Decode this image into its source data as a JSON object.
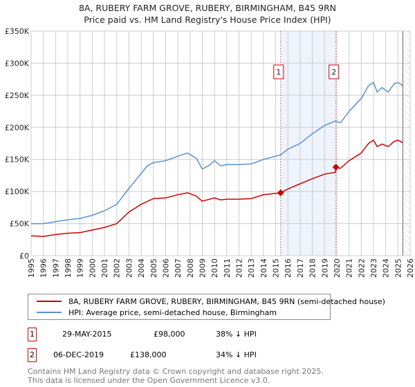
{
  "title": "8A, RUBERY FARM GROVE, RUBERY, BIRMINGHAM, B45 9RN",
  "subtitle": "Price paid vs. HM Land Registry's House Price Index (HPI)",
  "chart_data": {
    "type": "line",
    "xlim": [
      1995,
      2026
    ],
    "ylim": [
      0,
      350000
    ],
    "yticks": [
      0,
      50000,
      100000,
      150000,
      200000,
      250000,
      300000,
      350000
    ],
    "ytick_labels": [
      "£0",
      "£50K",
      "£100K",
      "£150K",
      "£200K",
      "£250K",
      "£300K",
      "£350K"
    ],
    "xticks": [
      "1995",
      "1996",
      "1997",
      "1998",
      "1999",
      "2000",
      "2001",
      "2002",
      "2003",
      "2004",
      "2005",
      "2006",
      "2007",
      "2008",
      "2009",
      "2010",
      "2011",
      "2012",
      "2013",
      "2014",
      "2015",
      "2016",
      "2017",
      "2018",
      "2019",
      "2020",
      "2021",
      "2022",
      "2023",
      "2024",
      "2025",
      "2026"
    ],
    "grid": true,
    "shaded_range": [
      2015.41,
      2019.93
    ],
    "hatched_from": 2025.4,
    "series": [
      {
        "name": "8A, RUBERY FARM GROVE, RUBERY, BIRMINGHAM, B45 9RN (semi-detached house)",
        "color": "#cc0000",
        "x": [
          1995,
          1996,
          1997,
          1998,
          1999,
          2000,
          2001,
          2002,
          2003,
          2004,
          2005,
          2006,
          2007,
          2007.8,
          2008.5,
          2009,
          2010,
          2010.5,
          2011,
          2012,
          2013,
          2014,
          2015.41,
          2016,
          2017,
          2018,
          2019,
          2019.9,
          2019.93,
          2020.3,
          2021,
          2022,
          2022.6,
          2023,
          2023.3,
          2023.7,
          2024.2,
          2024.7,
          2025,
          2025.4
        ],
        "y": [
          31000,
          30000,
          33000,
          35000,
          36000,
          40000,
          44000,
          50000,
          68000,
          80000,
          89000,
          90000,
          95000,
          98000,
          93000,
          85000,
          90000,
          87000,
          88000,
          88000,
          89000,
          95000,
          98000,
          104000,
          112000,
          120000,
          127000,
          130000,
          138000,
          136000,
          148000,
          160000,
          175000,
          180000,
          170000,
          174000,
          170000,
          178000,
          180000,
          176000
        ]
      },
      {
        "name": "HPI: Average price, semi-detached house, Birmingham",
        "color": "#5b8fd0",
        "x": [
          1995,
          1996,
          1997,
          1998,
          1999,
          2000,
          2001,
          2002,
          2003,
          2004,
          2004.5,
          2005,
          2006,
          2007,
          2007.8,
          2008.5,
          2009,
          2009.5,
          2010,
          2010.5,
          2011,
          2012,
          2013,
          2014,
          2015,
          2015.4,
          2016,
          2017,
          2018,
          2019,
          2019.9,
          2020.3,
          2021,
          2022,
          2022.6,
          2023,
          2023.3,
          2023.7,
          2024.2,
          2024.7,
          2025,
          2025.4
        ],
        "y": [
          50000,
          50000,
          53000,
          56000,
          58000,
          63000,
          70000,
          80000,
          105000,
          128000,
          140000,
          145000,
          148000,
          155000,
          160000,
          152000,
          135000,
          140000,
          148000,
          140000,
          142000,
          142000,
          143000,
          150000,
          155000,
          157000,
          166000,
          175000,
          190000,
          203000,
          210000,
          207000,
          225000,
          245000,
          265000,
          270000,
          255000,
          262000,
          255000,
          268000,
          270000,
          265000
        ]
      }
    ],
    "annotations": [
      {
        "label": "1",
        "x": 2015.41,
        "y": 98000
      },
      {
        "label": "2",
        "x": 2019.93,
        "y": 138000
      }
    ]
  },
  "legend": {
    "red": "8A, RUBERY FARM GROVE, RUBERY, BIRMINGHAM, B45 9RN (semi-detached house)",
    "blue": "HPI: Average price, semi-detached house, Birmingham"
  },
  "sales": [
    {
      "num": "1",
      "date": "29-MAY-2015",
      "price": "£98,000",
      "hpi": "38% ↓ HPI"
    },
    {
      "num": "2",
      "date": "06-DEC-2019",
      "price": "£138,000",
      "hpi": "34% ↓ HPI"
    }
  ],
  "footer": [
    "Contains HM Land Registry data © Crown copyright and database right 2025.",
    "This data is licensed under the Open Government Licence v3.0."
  ]
}
